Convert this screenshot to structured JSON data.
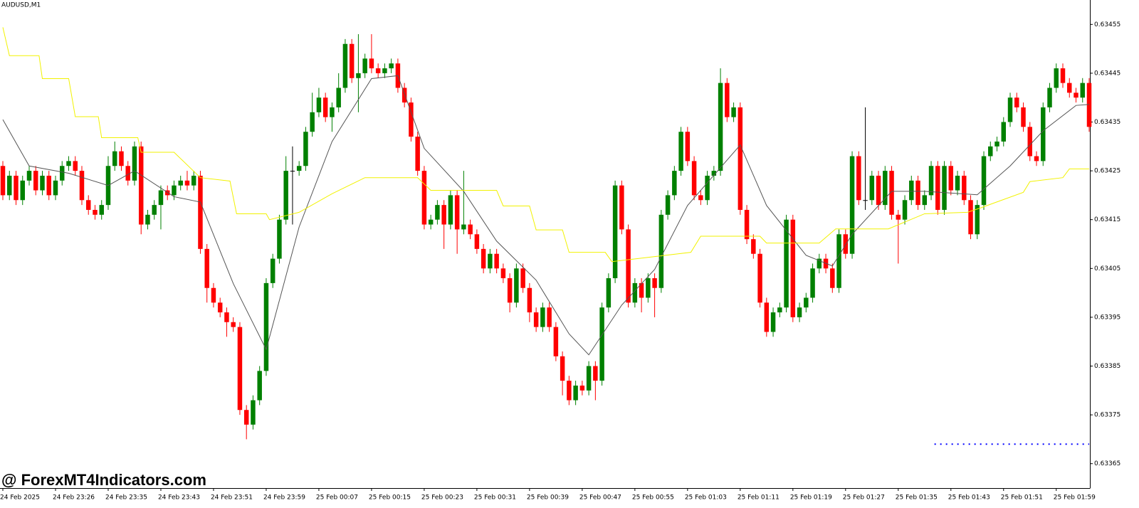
{
  "chart_data": {
    "type": "candlestick",
    "title": "AUDUSD,M1",
    "watermark": "@ ForexMT4Indicators.com",
    "up_color": "#008000",
    "down_color": "#ff0000",
    "flat_color": "#000000",
    "xlim": [
      0,
      165
    ],
    "ylim": [
      0.6336,
      0.6346
    ],
    "yticks": [
      0.63455,
      0.63445,
      0.63435,
      0.63425,
      0.63415,
      0.63405,
      0.63395,
      0.63385,
      0.63375,
      0.63365
    ],
    "xticks": [
      {
        "value": 0,
        "label": "24 Feb 2025"
      },
      {
        "value": 8,
        "label": "24 Feb 23:26"
      },
      {
        "value": 16,
        "label": "24 Feb 23:35"
      },
      {
        "value": 24,
        "label": "24 Feb 23:43"
      },
      {
        "value": 32,
        "label": "24 Feb 23:51"
      },
      {
        "value": 40,
        "label": "24 Feb 23:59"
      },
      {
        "value": 48,
        "label": "25 Feb 00:07"
      },
      {
        "value": 56,
        "label": "25 Feb 00:15"
      },
      {
        "value": 64,
        "label": "25 Feb 00:23"
      },
      {
        "value": 72,
        "label": "25 Feb 00:31"
      },
      {
        "value": 80,
        "label": "25 Feb 00:39"
      },
      {
        "value": 88,
        "label": "25 Feb 00:47"
      },
      {
        "value": 96,
        "label": "25 Feb 00:55"
      },
      {
        "value": 104,
        "label": "25 Feb 01:03"
      },
      {
        "value": 112,
        "label": "25 Feb 01:11"
      },
      {
        "value": 120,
        "label": "25 Feb 01:19"
      },
      {
        "value": 128,
        "label": "25 Feb 01:27"
      },
      {
        "value": 136,
        "label": "25 Feb 01:35"
      },
      {
        "value": 144,
        "label": "25 Feb 01:43"
      },
      {
        "value": 152,
        "label": "25 Feb 01:51"
      },
      {
        "value": 160,
        "label": "25 Feb 01:59"
      }
    ],
    "ohlc": [
      [
        0.63426,
        0.63427,
        0.63419,
        0.6342
      ],
      [
        0.6342,
        0.63425,
        0.63419,
        0.63424
      ],
      [
        0.63424,
        0.63425,
        0.63418,
        0.63419
      ],
      [
        0.63419,
        0.63424,
        0.63418,
        0.63423
      ],
      [
        0.63423,
        0.63426,
        0.63422,
        0.63425
      ],
      [
        0.63425,
        0.63426,
        0.6342,
        0.63421
      ],
      [
        0.63421,
        0.63425,
        0.6342,
        0.63424
      ],
      [
        0.63424,
        0.63425,
        0.63419,
        0.6342
      ],
      [
        0.6342,
        0.63424,
        0.63419,
        0.63423
      ],
      [
        0.63423,
        0.63427,
        0.63422,
        0.63426
      ],
      [
        0.63426,
        0.63428,
        0.63425,
        0.63427
      ],
      [
        0.63427,
        0.63428,
        0.63424,
        0.63425
      ],
      [
        0.63425,
        0.63426,
        0.63418,
        0.63419
      ],
      [
        0.63419,
        0.6342,
        0.63416,
        0.63417
      ],
      [
        0.63417,
        0.63418,
        0.63415,
        0.63416
      ],
      [
        0.63416,
        0.63419,
        0.63415,
        0.63418
      ],
      [
        0.63418,
        0.63428,
        0.63417,
        0.63426
      ],
      [
        0.63426,
        0.63431,
        0.63425,
        0.63429
      ],
      [
        0.63429,
        0.6343,
        0.63425,
        0.63426
      ],
      [
        0.63426,
        0.63427,
        0.63422,
        0.63423
      ],
      [
        0.63423,
        0.63431,
        0.63422,
        0.6343
      ],
      [
        0.6343,
        0.63431,
        0.63412,
        0.63414
      ],
      [
        0.63414,
        0.63417,
        0.63413,
        0.63416
      ],
      [
        0.63416,
        0.63419,
        0.63415,
        0.63418
      ],
      [
        0.63418,
        0.63422,
        0.63413,
        0.63421
      ],
      [
        0.63421,
        0.63422,
        0.63419,
        0.6342
      ],
      [
        0.6342,
        0.63423,
        0.63419,
        0.63422
      ],
      [
        0.63422,
        0.63424,
        0.63421,
        0.63423
      ],
      [
        0.63423,
        0.63425,
        0.63421,
        0.63422
      ],
      [
        0.63422,
        0.63425,
        0.63421,
        0.63424
      ],
      [
        0.63424,
        0.63425,
        0.63408,
        0.63409
      ],
      [
        0.63409,
        0.6341,
        0.63398,
        0.63401
      ],
      [
        0.63401,
        0.63402,
        0.63397,
        0.63398
      ],
      [
        0.63398,
        0.63399,
        0.63395,
        0.63396
      ],
      [
        0.63396,
        0.63397,
        0.63391,
        0.63394
      ],
      [
        0.63394,
        0.63395,
        0.63392,
        0.63393
      ],
      [
        0.63393,
        0.63394,
        0.63375,
        0.63376
      ],
      [
        0.63376,
        0.63377,
        0.6337,
        0.63373
      ],
      [
        0.63373,
        0.63379,
        0.63372,
        0.63378
      ],
      [
        0.63378,
        0.63385,
        0.63377,
        0.63384
      ],
      [
        0.63384,
        0.63403,
        0.63383,
        0.63402
      ],
      [
        0.63402,
        0.63408,
        0.63401,
        0.63407
      ],
      [
        0.63407,
        0.63416,
        0.63406,
        0.63415
      ],
      [
        0.63415,
        0.63428,
        0.63414,
        0.63425
      ],
      [
        0.63425,
        0.6343,
        0.63414,
        0.63425
      ],
      [
        0.63425,
        0.63427,
        0.63424,
        0.63426
      ],
      [
        0.63426,
        0.63434,
        0.63425,
        0.63433
      ],
      [
        0.63433,
        0.63441,
        0.63432,
        0.63437
      ],
      [
        0.63437,
        0.63442,
        0.63436,
        0.6344
      ],
      [
        0.6344,
        0.63441,
        0.63435,
        0.63436
      ],
      [
        0.63436,
        0.63439,
        0.63433,
        0.63438
      ],
      [
        0.63438,
        0.63445,
        0.63437,
        0.63442
      ],
      [
        0.63442,
        0.63452,
        0.63441,
        0.63451
      ],
      [
        0.63451,
        0.63452,
        0.63443,
        0.63444
      ],
      [
        0.63444,
        0.63453,
        0.63437,
        0.63445
      ],
      [
        0.63445,
        0.63449,
        0.63444,
        0.63448
      ],
      [
        0.63448,
        0.63453,
        0.63445,
        0.63446
      ],
      [
        0.63446,
        0.63447,
        0.63444,
        0.63445
      ],
      [
        0.63445,
        0.63447,
        0.63444,
        0.63446
      ],
      [
        0.63446,
        0.63448,
        0.63445,
        0.63447
      ],
      [
        0.63447,
        0.63448,
        0.63441,
        0.63442
      ],
      [
        0.63442,
        0.63443,
        0.63438,
        0.63439
      ],
      [
        0.63439,
        0.6344,
        0.63431,
        0.63432
      ],
      [
        0.63432,
        0.63433,
        0.63424,
        0.63425
      ],
      [
        0.63425,
        0.63426,
        0.63413,
        0.63414
      ],
      [
        0.63414,
        0.63416,
        0.63413,
        0.63415
      ],
      [
        0.63415,
        0.63419,
        0.63414,
        0.63418
      ],
      [
        0.63418,
        0.63419,
        0.63409,
        0.63414
      ],
      [
        0.63414,
        0.63421,
        0.63413,
        0.6342
      ],
      [
        0.6342,
        0.63421,
        0.63408,
        0.63413
      ],
      [
        0.63413,
        0.63425,
        0.63412,
        0.63414
      ],
      [
        0.63414,
        0.63415,
        0.63411,
        0.63412
      ],
      [
        0.63412,
        0.63413,
        0.63408,
        0.63409
      ],
      [
        0.63409,
        0.6341,
        0.63404,
        0.63405
      ],
      [
        0.63405,
        0.63409,
        0.63404,
        0.63408
      ],
      [
        0.63408,
        0.63409,
        0.63404,
        0.63405
      ],
      [
        0.63405,
        0.63406,
        0.63402,
        0.63403
      ],
      [
        0.63403,
        0.63404,
        0.63396,
        0.63398
      ],
      [
        0.63398,
        0.63406,
        0.63397,
        0.63405
      ],
      [
        0.63405,
        0.63406,
        0.634,
        0.63401
      ],
      [
        0.63401,
        0.63402,
        0.63394,
        0.63396
      ],
      [
        0.63396,
        0.63397,
        0.63392,
        0.63393
      ],
      [
        0.63393,
        0.63398,
        0.63392,
        0.63397
      ],
      [
        0.63397,
        0.63398,
        0.63392,
        0.63393
      ],
      [
        0.63393,
        0.63394,
        0.63386,
        0.63387
      ],
      [
        0.63387,
        0.63388,
        0.63379,
        0.63382
      ],
      [
        0.63382,
        0.63383,
        0.63377,
        0.63378
      ],
      [
        0.63378,
        0.63382,
        0.63377,
        0.63381
      ],
      [
        0.63381,
        0.63382,
        0.63379,
        0.6338
      ],
      [
        0.6338,
        0.63386,
        0.63379,
        0.63385
      ],
      [
        0.63385,
        0.63386,
        0.63378,
        0.63382
      ],
      [
        0.63382,
        0.63398,
        0.63381,
        0.63397
      ],
      [
        0.63397,
        0.63404,
        0.63396,
        0.63403
      ],
      [
        0.63403,
        0.63423,
        0.63402,
        0.63422
      ],
      [
        0.63422,
        0.63423,
        0.63412,
        0.63413
      ],
      [
        0.63413,
        0.63414,
        0.63397,
        0.63398
      ],
      [
        0.63398,
        0.63403,
        0.63397,
        0.63402
      ],
      [
        0.63402,
        0.63403,
        0.63396,
        0.63399
      ],
      [
        0.63399,
        0.63404,
        0.63398,
        0.63403
      ],
      [
        0.63403,
        0.63404,
        0.63395,
        0.63401
      ],
      [
        0.63401,
        0.63417,
        0.634,
        0.63416
      ],
      [
        0.63416,
        0.63421,
        0.63415,
        0.6342
      ],
      [
        0.6342,
        0.63426,
        0.63419,
        0.63425
      ],
      [
        0.63425,
        0.63434,
        0.63424,
        0.63433
      ],
      [
        0.63433,
        0.63434,
        0.63426,
        0.63427
      ],
      [
        0.63427,
        0.63428,
        0.63419,
        0.6342
      ],
      [
        0.6342,
        0.63421,
        0.63418,
        0.63419
      ],
      [
        0.63419,
        0.63425,
        0.63418,
        0.63424
      ],
      [
        0.63424,
        0.63426,
        0.63423,
        0.63425
      ],
      [
        0.63425,
        0.63446,
        0.63424,
        0.63443
      ],
      [
        0.63443,
        0.63444,
        0.63435,
        0.63436
      ],
      [
        0.63436,
        0.63439,
        0.63435,
        0.63438
      ],
      [
        0.63438,
        0.63439,
        0.63416,
        0.63417
      ],
      [
        0.63417,
        0.63418,
        0.6341,
        0.63411
      ],
      [
        0.63411,
        0.63412,
        0.63407,
        0.63408
      ],
      [
        0.63408,
        0.63409,
        0.63397,
        0.63398
      ],
      [
        0.63398,
        0.63399,
        0.63391,
        0.63392
      ],
      [
        0.63392,
        0.63397,
        0.63391,
        0.63396
      ],
      [
        0.63396,
        0.63398,
        0.63395,
        0.63397
      ],
      [
        0.63397,
        0.63416,
        0.63396,
        0.63415
      ],
      [
        0.63415,
        0.63416,
        0.63394,
        0.63395
      ],
      [
        0.63395,
        0.63398,
        0.63394,
        0.63397
      ],
      [
        0.63397,
        0.634,
        0.63396,
        0.63399
      ],
      [
        0.63399,
        0.63406,
        0.63398,
        0.63405
      ],
      [
        0.63405,
        0.63408,
        0.63404,
        0.63407
      ],
      [
        0.63407,
        0.63408,
        0.63404,
        0.63405
      ],
      [
        0.63405,
        0.63406,
        0.634,
        0.63401
      ],
      [
        0.63401,
        0.63413,
        0.634,
        0.63412
      ],
      [
        0.63412,
        0.63413,
        0.63407,
        0.63408
      ],
      [
        0.63408,
        0.63429,
        0.63407,
        0.63428
      ],
      [
        0.63428,
        0.63429,
        0.63418,
        0.63419
      ],
      [
        0.63419,
        0.63438,
        0.63417,
        0.63419
      ],
      [
        0.63419,
        0.63425,
        0.63418,
        0.63424
      ],
      [
        0.63424,
        0.63425,
        0.63417,
        0.63418
      ],
      [
        0.63418,
        0.63426,
        0.63417,
        0.63425
      ],
      [
        0.63425,
        0.63426,
        0.63415,
        0.63416
      ],
      [
        0.63416,
        0.63417,
        0.63406,
        0.63415
      ],
      [
        0.63415,
        0.6342,
        0.63414,
        0.63419
      ],
      [
        0.63419,
        0.63424,
        0.63418,
        0.63423
      ],
      [
        0.63423,
        0.63424,
        0.63417,
        0.63418
      ],
      [
        0.63418,
        0.63421,
        0.63417,
        0.6342
      ],
      [
        0.6342,
        0.63427,
        0.63419,
        0.63426
      ],
      [
        0.63426,
        0.63427,
        0.63416,
        0.63417
      ],
      [
        0.63417,
        0.63427,
        0.63416,
        0.63426
      ],
      [
        0.63426,
        0.63427,
        0.6342,
        0.63421
      ],
      [
        0.63421,
        0.63425,
        0.6342,
        0.63424
      ],
      [
        0.63424,
        0.63425,
        0.63418,
        0.63419
      ],
      [
        0.63419,
        0.6342,
        0.63411,
        0.63412
      ],
      [
        0.63412,
        0.63419,
        0.63411,
        0.63418
      ],
      [
        0.63418,
        0.63429,
        0.63417,
        0.63428
      ],
      [
        0.63428,
        0.63431,
        0.63427,
        0.6343
      ],
      [
        0.6343,
        0.63432,
        0.63429,
        0.63431
      ],
      [
        0.63431,
        0.63436,
        0.6343,
        0.63435
      ],
      [
        0.63435,
        0.63441,
        0.63434,
        0.6344
      ],
      [
        0.6344,
        0.63441,
        0.63437,
        0.63438
      ],
      [
        0.63438,
        0.63439,
        0.63433,
        0.63434
      ],
      [
        0.63434,
        0.63435,
        0.63427,
        0.63428
      ],
      [
        0.63428,
        0.63429,
        0.63426,
        0.63427
      ],
      [
        0.63427,
        0.63439,
        0.63426,
        0.63438
      ],
      [
        0.63438,
        0.63443,
        0.63437,
        0.63442
      ],
      [
        0.63442,
        0.63447,
        0.63441,
        0.63446
      ],
      [
        0.63446,
        0.63447,
        0.63442,
        0.63443
      ],
      [
        0.63443,
        0.63444,
        0.6344,
        0.63441
      ],
      [
        0.63441,
        0.63442,
        0.63439,
        0.6344
      ],
      [
        0.6344,
        0.63444,
        0.63439,
        0.63443
      ],
      [
        0.63443,
        0.63444,
        0.63433,
        0.63434
      ]
    ],
    "overlays": [
      {
        "color": "#555555",
        "x": [
          0,
          4,
          10,
          16,
          20,
          26,
          30,
          35,
          40,
          45,
          50,
          56,
          60,
          64,
          70,
          75,
          81,
          86,
          89,
          94,
          99,
          104,
          112,
          116,
          122,
          126,
          129,
          135,
          140,
          148,
          153,
          158,
          163,
          165
        ],
        "values": [
          0.634355,
          0.63426,
          0.634245,
          0.63422,
          0.63425,
          0.634197,
          0.634186,
          0.634019,
          0.633884,
          0.634135,
          0.63431,
          0.634439,
          0.634445,
          0.634296,
          0.634208,
          0.634106,
          0.634026,
          0.633916,
          0.633873,
          0.633975,
          0.634048,
          0.634179,
          0.634303,
          0.634179,
          0.634077,
          0.634055,
          0.63412,
          0.634208,
          0.634208,
          0.634201,
          0.63426,
          0.634332,
          0.634384,
          0.634386
        ]
      },
      {
        "color": "#f2f200",
        "x": [
          0,
          1,
          5.5,
          6,
          10,
          11,
          14.5,
          15,
          20.5,
          21,
          26,
          30,
          34.5,
          35.5,
          40,
          40.5,
          45,
          50,
          55,
          63,
          65,
          75,
          76,
          80,
          81,
          85,
          86,
          91.5,
          92.5,
          104.5,
          106,
          115,
          116,
          124,
          126.5,
          134.5,
          140,
          146.5,
          148.5,
          155,
          156,
          161,
          162,
          165
        ],
        "values": [
          0.634544,
          0.634486,
          0.634486,
          0.634439,
          0.634439,
          0.634361,
          0.634361,
          0.634318,
          0.634318,
          0.634288,
          0.634288,
          0.634236,
          0.634229,
          0.634162,
          0.634162,
          0.63415,
          0.634165,
          0.634203,
          0.634236,
          0.634236,
          0.63421,
          0.63421,
          0.634178,
          0.634178,
          0.634129,
          0.634129,
          0.634083,
          0.634083,
          0.634064,
          0.634083,
          0.634116,
          0.634116,
          0.634102,
          0.634102,
          0.634131,
          0.634131,
          0.634162,
          0.634165,
          0.634174,
          0.634206,
          0.634228,
          0.634236,
          0.634254,
          0.634254
        ]
      },
      {
        "color": "#0000ff",
        "dotted": true,
        "x": [
          141.5,
          165
        ],
        "values": [
          0.63369,
          0.63369
        ]
      }
    ]
  }
}
